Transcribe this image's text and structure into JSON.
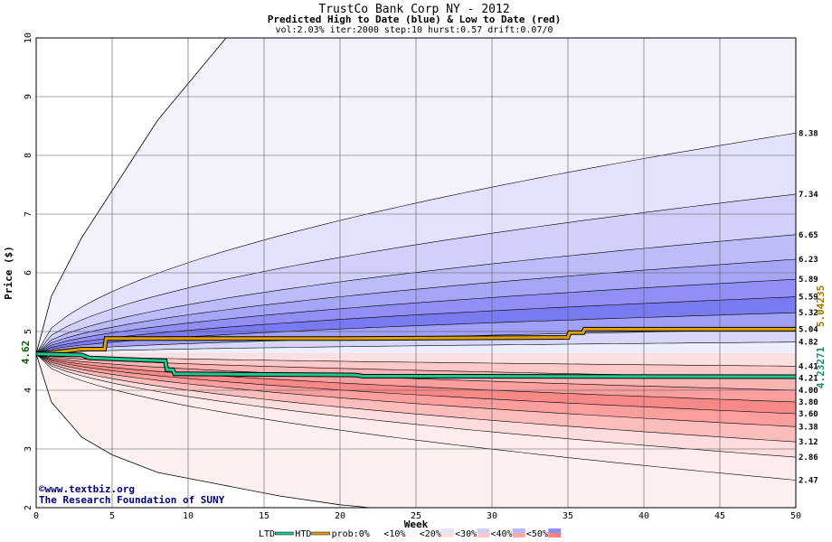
{
  "chart_data": {
    "type": "area",
    "title": "TrustCo Bank Corp NY - 2012",
    "subtitle": "Predicted High to Date (blue) &  Low to Date (red)",
    "params": "vol:2.03% iter:2000 step:10 hurst:0.57 drift:0.07/0",
    "xlabel": "Week",
    "ylabel": "Price ($)",
    "xlim": [
      0,
      50
    ],
    "ylim": [
      2,
      10
    ],
    "x_ticks": [
      "0",
      "5",
      "10",
      "15",
      "20",
      "25",
      "30",
      "35",
      "40",
      "45",
      "50"
    ],
    "y_ticks": [
      "2",
      "3",
      "4",
      "5",
      "6",
      "7",
      "8",
      "9",
      "10"
    ],
    "start_price": 4.62,
    "start_label": "4.62",
    "high_end_labels": [
      "8.38",
      "7.34",
      "6.65",
      "6.23",
      "5.89",
      "5.59",
      "5.32",
      "5.04",
      "4.82"
    ],
    "low_end_labels": [
      "4.41",
      "4.21",
      "4.00",
      "3.80",
      "3.60",
      "3.38",
      "3.12",
      "2.86",
      "2.47"
    ],
    "htd_final_label": "5.04235",
    "ltd_final_label": "4.23271",
    "series": [
      {
        "name": "HTD",
        "color": "#e0a000",
        "x": [
          0,
          1,
          2,
          3,
          4.5,
          4.6,
          20,
          35,
          35.1,
          36,
          36.1,
          50
        ],
        "y": [
          4.62,
          4.64,
          4.67,
          4.7,
          4.7,
          4.88,
          4.88,
          4.9,
          4.98,
          4.98,
          5.04,
          5.04
        ]
      },
      {
        "name": "LTD",
        "color": "#20c890",
        "x": [
          0,
          3,
          3.5,
          8.5,
          8.6,
          9,
          9.1,
          21,
          21.5,
          50
        ],
        "y": [
          4.62,
          4.6,
          4.55,
          4.5,
          4.35,
          4.35,
          4.28,
          4.26,
          4.24,
          4.23
        ]
      }
    ],
    "high_contours": [
      {
        "end": 8.38
      },
      {
        "end": 7.34
      },
      {
        "end": 6.65
      },
      {
        "end": 6.23
      },
      {
        "end": 5.89
      },
      {
        "end": 5.59
      },
      {
        "end": 5.32
      },
      {
        "end": 5.04
      },
      {
        "end": 4.82
      }
    ],
    "low_contours": [
      {
        "end": 4.41
      },
      {
        "end": 4.21
      },
      {
        "end": 4.0
      },
      {
        "end": 3.8
      },
      {
        "end": 3.6
      },
      {
        "end": 3.38
      },
      {
        "end": 3.12
      },
      {
        "end": 2.86
      },
      {
        "end": 2.47
      }
    ],
    "outer_high": {
      "x": [
        0,
        1,
        3,
        5,
        8,
        12.5
      ],
      "y": [
        4.62,
        5.6,
        6.6,
        7.4,
        8.6,
        10
      ]
    },
    "outer_low": {
      "x": [
        0,
        1,
        3,
        5,
        8,
        12,
        16,
        20,
        22
      ],
      "y": [
        4.62,
        3.8,
        3.2,
        2.9,
        2.6,
        2.4,
        2.2,
        2.05,
        2.0
      ]
    },
    "legend": [
      "LTD",
      "HTD",
      "prob:0%",
      "<10%",
      "<20%",
      "<30%",
      "<40%",
      "<50%"
    ],
    "legend_colors": [
      "#ffffff",
      "#f4f4ff",
      "#e4e4ff",
      "#d0d0ff",
      "#b8b8ff",
      "#8f8ff8"
    ],
    "legend_colors_red": [
      "#ffffff",
      "#fff4f4",
      "#ffe0e0",
      "#ffc8c8",
      "#ffa8a8",
      "#ff8080"
    ],
    "grid": true,
    "colors": {
      "htd": "#e0a000",
      "ltd": "#20c890",
      "start_label": "#006000",
      "htd_label": "#a07800",
      "ltd_label": "#209070"
    }
  },
  "credit": {
    "line1": "©www.textbiz.org",
    "line2": "The Research Foundation of SUNY"
  }
}
